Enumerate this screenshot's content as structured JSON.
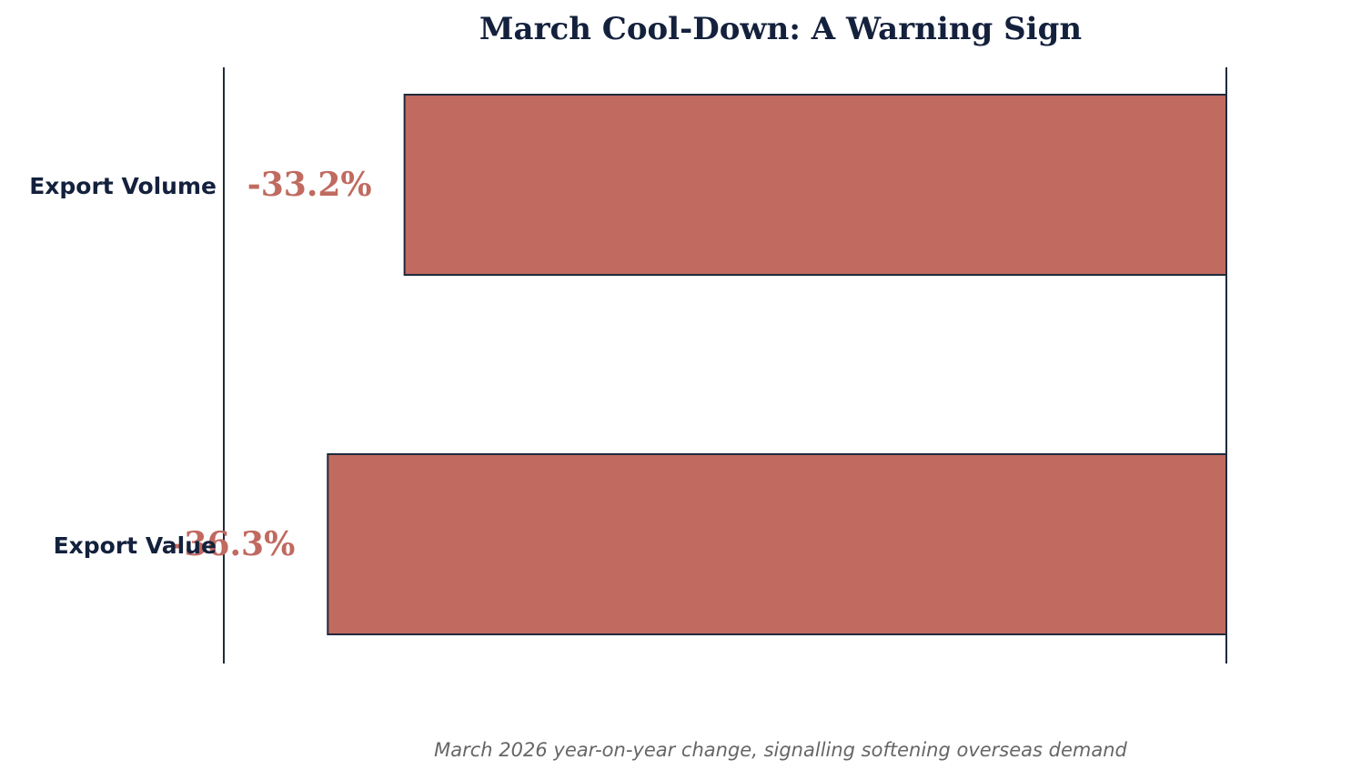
{
  "chart_data": {
    "type": "bar",
    "orientation": "horizontal",
    "title": "March Cool-Down: A Warning Sign",
    "caption": "March 2026 year-on-year change, signalling softening overseas demand",
    "categories": [
      "Export Volume",
      "Export Value"
    ],
    "values": [
      -33.2,
      -36.3
    ],
    "value_labels": [
      "-33.2%",
      "-36.3%"
    ],
    "xlim": [
      -40.5,
      0
    ],
    "grid": false
  },
  "colors": {
    "bar": "#c06a60",
    "bar_edge": "#1f2a3c",
    "title": "#14213d",
    "axis": "#1f2a3c",
    "category_text": "#14213d",
    "value_text": "#c06a60",
    "caption": "#666666"
  }
}
